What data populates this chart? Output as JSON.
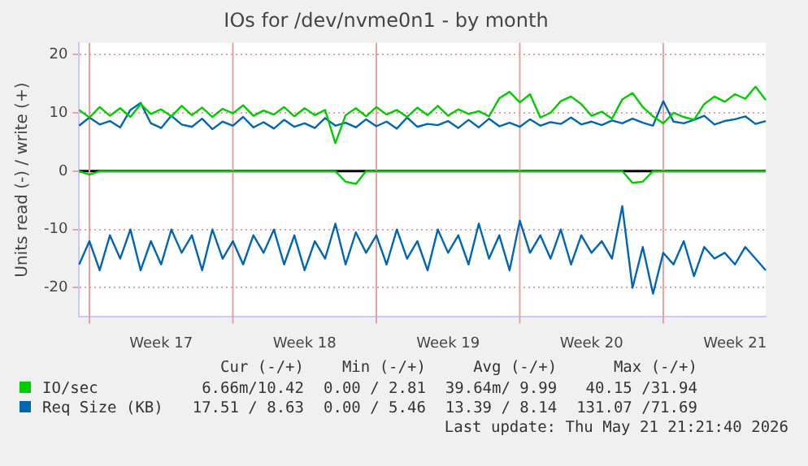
{
  "chart_data": {
    "type": "line",
    "title": "IOs for /dev/nvme0n1 - by month",
    "ylabel": "Units read (-) / write (+)",
    "categories": [
      null,
      null,
      null,
      null,
      null,
      null,
      null,
      null,
      "Week 17",
      null,
      null,
      null,
      null,
      null,
      null,
      null,
      null,
      null,
      null,
      null,
      null,
      null,
      "Week 18",
      null,
      null,
      null,
      null,
      null,
      null,
      null,
      null,
      null,
      null,
      null,
      null,
      null,
      "Week 19",
      null,
      null,
      null,
      null,
      null,
      null,
      null,
      null,
      null,
      null,
      null,
      null,
      null,
      "Week 20",
      null,
      null,
      null,
      null,
      null,
      null,
      null,
      null,
      null,
      null,
      null,
      null,
      null,
      "Week 21",
      null,
      null,
      null
    ],
    "ylim": [
      -25,
      22
    ],
    "yticks": [
      -20,
      -10,
      0,
      10,
      20
    ],
    "grid": true,
    "legend": "bottom left",
    "marker": "none",
    "line_style": "solid",
    "ref_lines": [
      {
        "axis": "y",
        "value": 0,
        "color": "#000000"
      }
    ],
    "series": [
      {
        "name": "IO/sec",
        "color": "#00cc00",
        "values": [
          10.5,
          9.2,
          11,
          9.5,
          10.8,
          9.3,
          11.5,
          9.8,
          10.6,
          9.4,
          11.2,
          9.6,
          10.9,
          9.3,
          10.7,
          9.9,
          11.3,
          9.5,
          10.4,
          9.7,
          11,
          9.4,
          10.8,
          9.6,
          10.5,
          4.8,
          9.6,
          10.8,
          9.4,
          11,
          9.7,
          10.5,
          9.3,
          10.9,
          9.6,
          11.2,
          9.5,
          10.6,
          9.8,
          10.3,
          9.4,
          12.5,
          13.6,
          11.8,
          13.2,
          9.2,
          10,
          12,
          12.8,
          11.5,
          9.5,
          10.2,
          9,
          12.3,
          13.4,
          11,
          9.4,
          8.2,
          10,
          9.3,
          8.8,
          11.5,
          12.8,
          11.9,
          13.2,
          12.4,
          14.5,
          12.2
        ]
      },
      {
        "color": "#00cc00",
        "values": [
          0,
          -0.6,
          0,
          0,
          0,
          0,
          0,
          0,
          0,
          0,
          0,
          0,
          0,
          0,
          0,
          0,
          0,
          0,
          0,
          0,
          0,
          0,
          0,
          0,
          0,
          0,
          -1.8,
          -2.2,
          0,
          0,
          0,
          0,
          0,
          0,
          0,
          0,
          0,
          0,
          0,
          0,
          0,
          0,
          0,
          0,
          0,
          0,
          0,
          0,
          0,
          0,
          0,
          0,
          0,
          0,
          -2,
          -1.8,
          0,
          0,
          0,
          0,
          0,
          0,
          0,
          0,
          0,
          0,
          0,
          0
        ]
      },
      {
        "name": "Req Size (KB)",
        "color": "#0066b3",
        "values": [
          7.8,
          9.2,
          8,
          8.6,
          7.5,
          10.5,
          11.7,
          8.2,
          7.4,
          9.5,
          8,
          7.6,
          9,
          7.2,
          8.5,
          7.8,
          9.3,
          7.5,
          8.4,
          7.3,
          8.8,
          7.6,
          8.2,
          7.4,
          9.1,
          7.8,
          8.3,
          7.5,
          8.9,
          7.7,
          8.5,
          7.3,
          9.2,
          7.6,
          8.1,
          7.9,
          8.6,
          7.4,
          8.8,
          7.5,
          9,
          7.7,
          8.3,
          7.6,
          8.9,
          7.8,
          8.4,
          8.1,
          9.2,
          8,
          8.5,
          7.9,
          8.7,
          8.2,
          9,
          8.3,
          7.8,
          12,
          8.5,
          8.2,
          8.8,
          9.5,
          8,
          8.6,
          8.9,
          9.4,
          8.1,
          8.6
        ]
      },
      {
        "color": "#0066b3",
        "values": [
          -16,
          -12,
          -17,
          -11,
          -15,
          -10,
          -17,
          -12,
          -16,
          -10,
          -14,
          -11,
          -17,
          -10,
          -15,
          -12,
          -16,
          -11,
          -14,
          -10,
          -16,
          -11,
          -17,
          -12,
          -15,
          -9,
          -16,
          -10.5,
          -14,
          -11,
          -16,
          -10,
          -15,
          -12,
          -17,
          -10,
          -14,
          -11,
          -16,
          -9,
          -15,
          -11,
          -17,
          -8.5,
          -14,
          -11,
          -15,
          -10,
          -16,
          -11,
          -14,
          -12,
          -15,
          -6,
          -20,
          -13,
          -21,
          -14,
          -16,
          -12,
          -18,
          -13,
          -15,
          -14,
          -16,
          -13,
          -15,
          -17
        ]
      }
    ],
    "annotations": [
      "Cur (-/+)",
      "Min (-/+)",
      "Avg (-/+)",
      "Max (-/+)",
      "6.66m/10.42",
      "0.00 / 2.81",
      "39.64m/ 9.99",
      "40.15 /31.94",
      "17.51 / 8.63",
      "0.00 / 5.46",
      "13.39 / 8.14",
      "131.07 /71.69",
      "Last update: Thu May 21 21:21:40 2026"
    ]
  }
}
